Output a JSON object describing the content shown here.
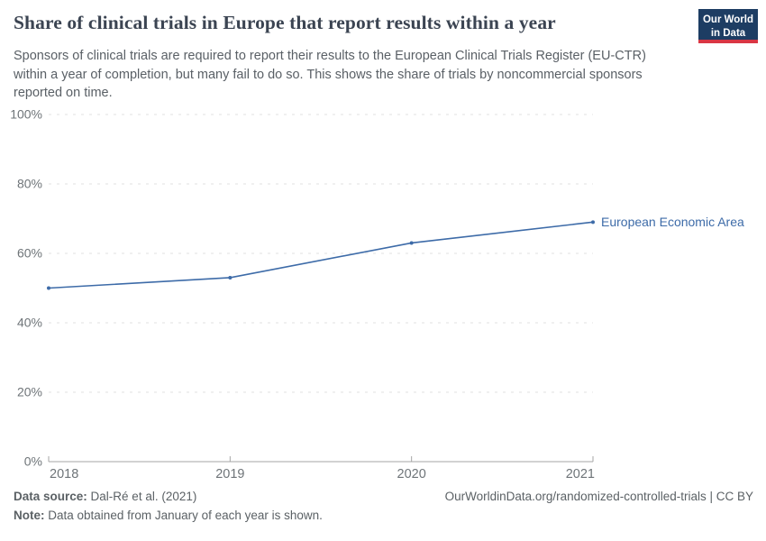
{
  "chart_data": {
    "type": "line",
    "title": "Share of clinical trials in Europe that report results within a year",
    "subtitle": "Sponsors of clinical trials are required to report their results to the European Clinical Trials Register (EU-CTR) within a year of completion, but many fail to do so. This shows the share of trials by noncommercial sponsors reported on time.",
    "x": [
      2018,
      2019,
      2020,
      2021
    ],
    "series": [
      {
        "name": "European Economic Area",
        "values": [
          50,
          53,
          63,
          69
        ],
        "color": "#3d6ba8"
      }
    ],
    "ylim": [
      0,
      100
    ],
    "yticks": [
      0,
      20,
      40,
      60,
      80,
      100
    ],
    "ytick_suffix": "%",
    "grid": "horizontal-dashed",
    "legend_position": "end-of-line-label"
  },
  "logo": {
    "line1": "Our World",
    "line2": "in Data"
  },
  "footer": {
    "source_label": "Data source:",
    "source_value": "Dal-Ré et al. (2021)",
    "note_label": "Note:",
    "note_value": "Data obtained from January of each year is shown.",
    "link": "OurWorldinData.org/randomized-controlled-trials | CC BY"
  },
  "colors": {
    "series_blue": "#3d6ba8",
    "logo_navy": "#1d3d63",
    "logo_red": "#d93644",
    "axis_gray": "#a5a5a5",
    "gridline_gray": "#e2e2e2"
  }
}
